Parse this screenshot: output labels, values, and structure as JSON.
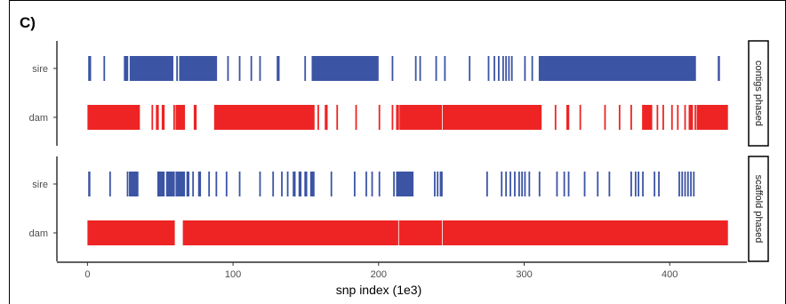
{
  "panel_label": "C)",
  "chart_data": {
    "type": "bar",
    "orientation": "horizontal-segments",
    "xlabel": "snp index (1e3)",
    "ylabel": "",
    "xlim": [
      -21,
      453
    ],
    "xticks": [
      0,
      100,
      200,
      300,
      400
    ],
    "grid": false,
    "facets": [
      {
        "strip_label": "contigs phased",
        "categories": [
          "sire",
          "dam"
        ],
        "series": [
          {
            "name": "sire",
            "color": "#3B54A4",
            "segments": [
              [
                0.5,
                2.5
              ],
              [
                11,
                12
              ],
              [
                25,
                28
              ],
              [
                29,
                59
              ],
              [
                61,
                62
              ],
              [
                63,
                89
              ],
              [
                96,
                97
              ],
              [
                104,
                105
              ],
              [
                112,
                113
              ],
              [
                118,
                119
              ],
              [
                130,
                132
              ],
              [
                149,
                150
              ],
              [
                154,
                200
              ],
              [
                209,
                210
              ],
              [
                225,
                226
              ],
              [
                228,
                229
              ],
              [
                239,
                240
              ],
              [
                245,
                246
              ],
              [
                262,
                263
              ],
              [
                275,
                276
              ],
              [
                279,
                280
              ],
              [
                282,
                283
              ],
              [
                285,
                286
              ],
              [
                287,
                288
              ],
              [
                289,
                290
              ],
              [
                291,
                292
              ],
              [
                300,
                301
              ],
              [
                305,
                306
              ],
              [
                310,
                418
              ],
              [
                433,
                434.5
              ]
            ]
          },
          {
            "name": "dam",
            "color": "#EE2424",
            "segments": [
              [
                0,
                36
              ],
              [
                44,
                45
              ],
              [
                47,
                49
              ],
              [
                51,
                53
              ],
              [
                59,
                60
              ],
              [
                60.5,
                67
              ],
              [
                73,
                75
              ],
              [
                87,
                156
              ],
              [
                158,
                159
              ],
              [
                163,
                165
              ],
              [
                171,
                172
              ],
              [
                184,
                185
              ],
              [
                200,
                201
              ],
              [
                209,
                210
              ],
              [
                212,
                214
              ],
              [
                214.3,
                243.5
              ],
              [
                244,
                312
              ],
              [
                321,
                322
              ],
              [
                329,
                331
              ],
              [
                338,
                339
              ],
              [
                355,
                356
              ],
              [
                365,
                366
              ],
              [
                373,
                374
              ],
              [
                381,
                388
              ],
              [
                391,
                392
              ],
              [
                395,
                396
              ],
              [
                401,
                402
              ],
              [
                405,
                406
              ],
              [
                410,
                411
              ],
              [
                413,
                416
              ],
              [
                417,
                418
              ],
              [
                418.5,
                440
              ]
            ]
          }
        ]
      },
      {
        "strip_label": "scaffold phased",
        "categories": [
          "sire",
          "dam"
        ],
        "series": [
          {
            "name": "sire",
            "color": "#3B54A4",
            "segments": [
              [
                0.5,
                2
              ],
              [
                15,
                16
              ],
              [
                27,
                28
              ],
              [
                28.5,
                35
              ],
              [
                48,
                53
              ],
              [
                54,
                60
              ],
              [
                60.5,
                67
              ],
              [
                68,
                70
              ],
              [
                72,
                73
              ],
              [
                76,
                78
              ],
              [
                83,
                84
              ],
              [
                88,
                89
              ],
              [
                95,
                96
              ],
              [
                104,
                105
              ],
              [
                118,
                119
              ],
              [
                127,
                128
              ],
              [
                133,
                134
              ],
              [
                137,
                138
              ],
              [
                141,
                143
              ],
              [
                145,
                147
              ],
              [
                149,
                151
              ],
              [
                153,
                156
              ],
              [
                167,
                168
              ],
              [
                183,
                184
              ],
              [
                191,
                192
              ],
              [
                195,
                196
              ],
              [
                200,
                201
              ],
              [
                210,
                211
              ],
              [
                212,
                224
              ],
              [
                238,
                239
              ],
              [
                240,
                241
              ],
              [
                242,
                244
              ],
              [
                274,
                275
              ],
              [
                284,
                285
              ],
              [
                287,
                288
              ],
              [
                290,
                291
              ],
              [
                293,
                294
              ],
              [
                296,
                297
              ],
              [
                298,
                299
              ],
              [
                300,
                301
              ],
              [
                303,
                304
              ],
              [
                310,
                311
              ],
              [
                322,
                323
              ],
              [
                327,
                328
              ],
              [
                330,
                331
              ],
              [
                341,
                342
              ],
              [
                350,
                351
              ],
              [
                358,
                359
              ],
              [
                373,
                374
              ],
              [
                376,
                377
              ],
              [
                378,
                379
              ],
              [
                381,
                382
              ],
              [
                389,
                390
              ],
              [
                392,
                393
              ],
              [
                406,
                407
              ],
              [
                408,
                409
              ],
              [
                410,
                411
              ],
              [
                412,
                413
              ],
              [
                414,
                415
              ],
              [
                416,
                417
              ]
            ]
          },
          {
            "name": "dam",
            "color": "#EE2424",
            "segments": [
              [
                0,
                60
              ],
              [
                65.5,
                213.5
              ],
              [
                214,
                243.5
              ],
              [
                244,
                440
              ]
            ]
          }
        ]
      }
    ]
  }
}
